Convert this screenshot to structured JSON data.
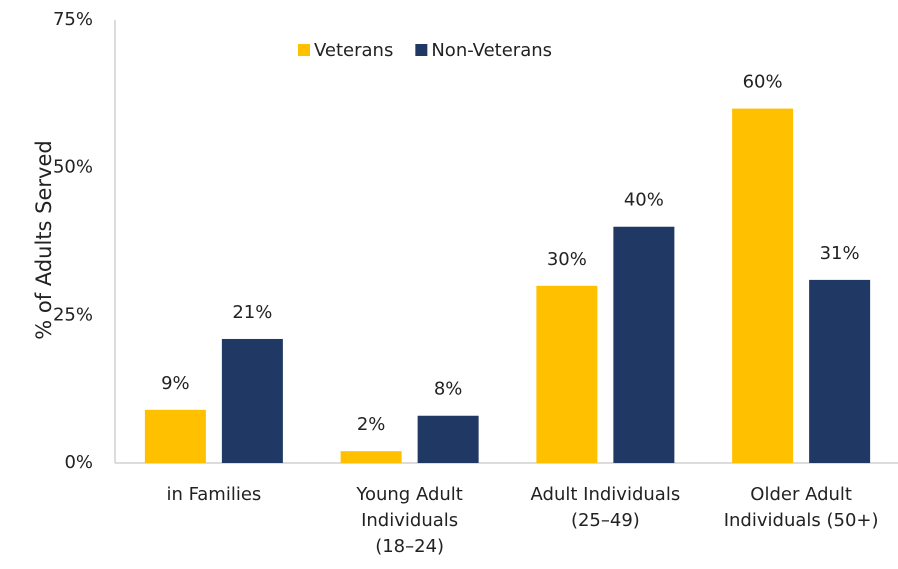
{
  "chart_data": {
    "type": "bar",
    "y_label": "% of Adults Served",
    "categories": [
      "in Families",
      "Young Adult\nIndividuals\n(18–24)",
      "Adult Individuals\n(25–49)",
      "Older Adult\nIndividuals (50+)"
    ],
    "series": [
      {
        "name": "Veterans",
        "color": "#FFC000",
        "values": [
          9,
          2,
          30,
          60
        ],
        "value_labels": [
          "9%",
          "2%",
          "30%",
          "60%"
        ]
      },
      {
        "name": "Non-Veterans",
        "color": "#203864",
        "values": [
          21,
          8,
          40,
          31
        ],
        "value_labels": [
          "21%",
          "8%",
          "40%",
          "31%"
        ]
      }
    ],
    "ylim": [
      0,
      75
    ],
    "yticks": [
      {
        "value": 0,
        "label": "0%"
      },
      {
        "value": 25,
        "label": "25%"
      },
      {
        "value": 50,
        "label": "50%"
      },
      {
        "value": 75,
        "label": "75%"
      }
    ],
    "grid": false,
    "legend": "top"
  }
}
